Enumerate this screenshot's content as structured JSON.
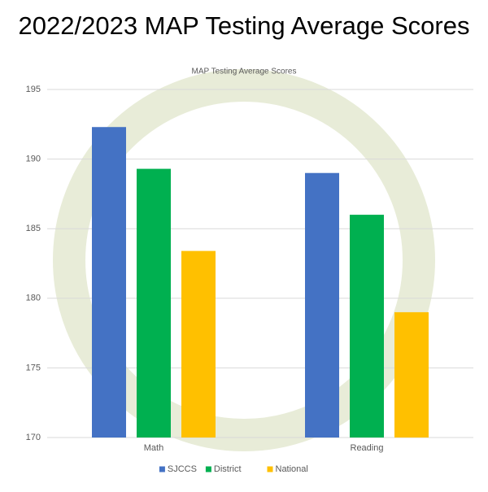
{
  "chart_data": {
    "type": "bar",
    "title": "2022/2023 MAP Testing Average Scores",
    "subtitle": "MAP Testing Average Scores",
    "categories": [
      "Math",
      "Reading"
    ],
    "series": [
      {
        "name": "SJCCS",
        "color": "#4472c4",
        "values": [
          192.3,
          189.0
        ]
      },
      {
        "name": "District",
        "color": "#00b050",
        "values": [
          189.3,
          186.0
        ]
      },
      {
        "name": "National",
        "color": "#ffc000",
        "values": [
          183.4,
          179.0
        ]
      }
    ],
    "ylim": [
      170,
      195
    ],
    "yticks": [
      170,
      175,
      180,
      185,
      190,
      195
    ],
    "grid": true,
    "legend": "bottom"
  }
}
